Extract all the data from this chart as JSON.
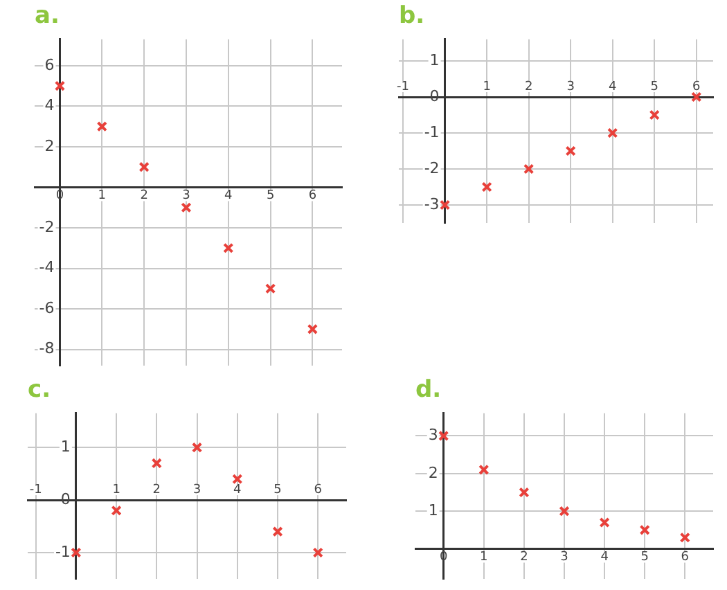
{
  "chart_data": [
    {
      "type": "scatter",
      "title": "a.",
      "x": [
        0,
        1,
        2,
        3,
        4,
        5,
        6
      ],
      "series": [
        {
          "color": "#e8403a",
          "values": [
            5,
            3,
            1,
            -1,
            -3,
            -5,
            -7
          ]
        }
      ],
      "xlim": [
        -0.6,
        6.7
      ],
      "ylim": [
        -8.8,
        7.3
      ],
      "xticks": [
        0,
        1,
        2,
        3,
        4,
        5,
        6
      ],
      "yticks": [
        -8,
        -6,
        -4,
        -2,
        2,
        4,
        6
      ],
      "grid": true,
      "marker": "cross",
      "legend": false
    },
    {
      "type": "scatter",
      "title": "b.",
      "x": [
        0,
        1,
        2,
        3,
        4,
        5,
        6
      ],
      "series": [
        {
          "color": "#e8403a",
          "values": [
            -3,
            -2.5,
            -2,
            -1.5,
            -1,
            -0.5,
            0
          ]
        }
      ],
      "xlim": [
        -1.1,
        6.4
      ],
      "ylim": [
        -3.5,
        1.6
      ],
      "xticks": [
        -1,
        1,
        2,
        3,
        4,
        5,
        6
      ],
      "yticks": [
        -3,
        -2,
        -1,
        0,
        1
      ],
      "grid": true,
      "marker": "cross",
      "legend": false
    },
    {
      "type": "scatter",
      "title": "c.",
      "x": [
        0,
        1,
        2,
        3,
        4,
        5,
        6
      ],
      "series": [
        {
          "color": "#e8403a",
          "values": [
            -1,
            -0.2,
            0.7,
            1,
            0.4,
            -0.6,
            -1
          ]
        }
      ],
      "xlim": [
        -1.2,
        6.7
      ],
      "ylim": [
        -1.5,
        1.65
      ],
      "xticks": [
        -1,
        1,
        2,
        3,
        4,
        5,
        6
      ],
      "yticks": [
        -1,
        0,
        1
      ],
      "grid": true,
      "marker": "cross",
      "legend": false
    },
    {
      "type": "scatter",
      "title": "d.",
      "x": [
        0,
        1,
        2,
        3,
        4,
        5,
        6
      ],
      "series": [
        {
          "color": "#e8403a",
          "values": [
            3,
            2.1,
            1.5,
            1,
            0.7,
            0.5,
            0.3
          ]
        }
      ],
      "xlim": [
        -0.7,
        6.7
      ],
      "ylim": [
        -0.8,
        3.6
      ],
      "xticks": [
        0,
        1,
        2,
        3,
        4,
        5,
        6
      ],
      "yticks": [
        1,
        2,
        3
      ],
      "grid": true,
      "marker": "cross",
      "legend": false
    }
  ]
}
